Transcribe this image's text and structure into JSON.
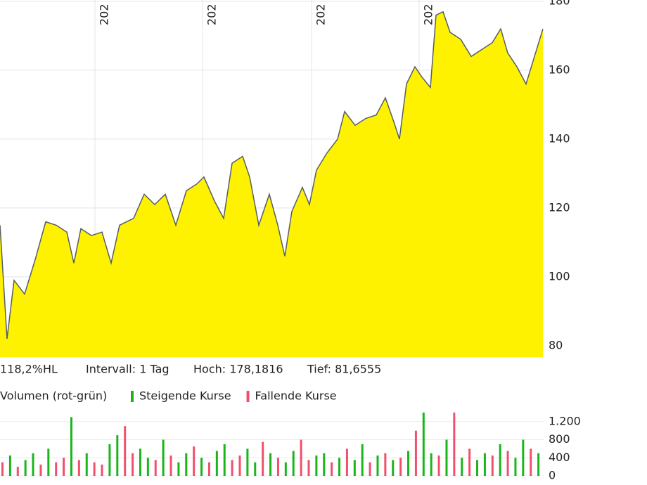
{
  "chart_data": [
    {
      "type": "area",
      "color": "#fff200",
      "line_color": "#555e66",
      "x": [
        0,
        10,
        20,
        35,
        50,
        65,
        80,
        95,
        105,
        115,
        130,
        145,
        158,
        170,
        190,
        205,
        220,
        235,
        250,
        265,
        280,
        290,
        305,
        318,
        330,
        345,
        355,
        368,
        383,
        395,
        405,
        415,
        430,
        440,
        450,
        465,
        480,
        490,
        505,
        520,
        535,
        548,
        560,
        568,
        578,
        590,
        600,
        612,
        620,
        630,
        640,
        655,
        670,
        685,
        700,
        712,
        722,
        735,
        748,
        760,
        772
      ],
      "values": [
        115,
        82,
        99,
        95,
        105,
        116,
        115,
        113,
        104,
        114,
        112,
        113,
        104,
        115,
        117,
        124,
        121,
        124,
        115,
        125,
        127,
        129,
        122,
        117,
        133,
        135,
        129,
        115,
        124,
        115,
        106,
        119,
        126,
        121,
        131,
        136,
        140,
        148,
        144,
        146,
        147,
        152,
        145,
        140,
        156,
        161,
        158,
        155,
        176,
        177,
        171,
        169,
        164,
        166,
        168,
        172,
        165,
        161,
        156,
        164,
        172
      ],
      "xlim": [
        0,
        773
      ],
      "ylim": [
        76.7,
        180.4
      ],
      "yticks": [
        80,
        100,
        120,
        140,
        160,
        180
      ],
      "xticks": [
        {
          "value": 135,
          "label": "202"
        },
        {
          "value": 288,
          "label": "202"
        },
        {
          "value": 443,
          "label": "202"
        },
        {
          "value": 596,
          "label": "202"
        }
      ],
      "grid": true,
      "info": [
        "118,2%HL",
        "Intervall: 1 Tag",
        "Hoch: 178,1816",
        "Tief: 81,6555"
      ]
    },
    {
      "type": "bar",
      "title": "Volumen (rot-grün)",
      "legend": [
        {
          "name": "Steigende Kurse",
          "color": "#1bb51b"
        },
        {
          "name": "Fallende Kurse",
          "color": "#f0506e"
        }
      ],
      "values": [
        300,
        450,
        200,
        350,
        500,
        250,
        600,
        300,
        400,
        1300,
        350,
        500,
        300,
        250,
        700,
        900,
        1100,
        500,
        600,
        400,
        350,
        800,
        450,
        300,
        500,
        650,
        400,
        300,
        550,
        700,
        350,
        450,
        600,
        300,
        750,
        500,
        400,
        300,
        550,
        800,
        350,
        450,
        500,
        300,
        400,
        600,
        350,
        700,
        300,
        450,
        500,
        350,
        400,
        550,
        1000,
        1400,
        500,
        450,
        800,
        1400,
        400,
        600,
        350,
        500,
        450,
        700,
        550,
        400,
        800,
        600,
        500
      ],
      "colors": [
        "#f0506e",
        "#1bb51b",
        "#f0506e",
        "#1bb51b",
        "#1bb51b",
        "#f0506e",
        "#1bb51b",
        "#f0506e",
        "#f0506e",
        "#1bb51b",
        "#f0506e",
        "#1bb51b",
        "#f0506e",
        "#f0506e",
        "#1bb51b",
        "#1bb51b",
        "#f0506e",
        "#f0506e",
        "#1bb51b",
        "#1bb51b",
        "#f0506e",
        "#1bb51b",
        "#f0506e",
        "#1bb51b",
        "#1bb51b",
        "#f0506e",
        "#1bb51b",
        "#f0506e",
        "#1bb51b",
        "#1bb51b",
        "#f0506e",
        "#f0506e",
        "#1bb51b",
        "#1bb51b",
        "#f0506e",
        "#1bb51b",
        "#f0506e",
        "#1bb51b",
        "#1bb51b",
        "#f0506e",
        "#f0506e",
        "#1bb51b",
        "#1bb51b",
        "#f0506e",
        "#1bb51b",
        "#f0506e",
        "#1bb51b",
        "#1bb51b",
        "#f0506e",
        "#1bb51b",
        "#f0506e",
        "#1bb51b",
        "#f0506e",
        "#1bb51b",
        "#f0506e",
        "#1bb51b",
        "#1bb51b",
        "#f0506e",
        "#1bb51b",
        "#f0506e",
        "#1bb51b",
        "#f0506e",
        "#1bb51b",
        "#1bb51b",
        "#f0506e",
        "#1bb51b",
        "#f0506e",
        "#1bb51b",
        "#1bb51b",
        "#f0506e",
        "#1bb51b"
      ],
      "ylim": [
        0,
        1430
      ],
      "yticks": [
        0,
        400,
        800,
        {
          "value": 1200,
          "label": "1.200"
        }
      ]
    }
  ]
}
